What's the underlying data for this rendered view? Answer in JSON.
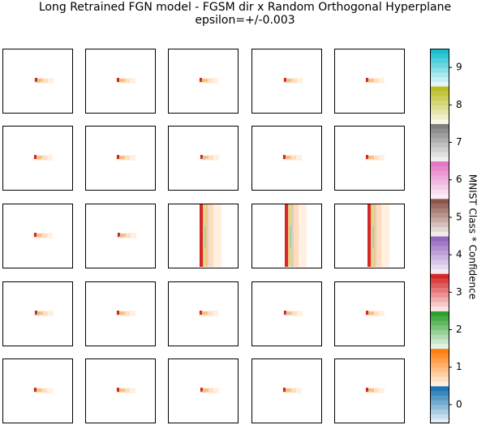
{
  "chart_data": {
    "type": "heatmap",
    "title_line1": "Long Retrained FGN model - FGSM dir x Random Orthogonal Hyperplane",
    "title_line2": "epsilon=+/-0.003",
    "rows": 5,
    "cols": 5,
    "panels": [
      [
        "blob",
        "blob",
        "blob",
        "blob",
        "blob"
      ],
      [
        "blob",
        "blob",
        "blob",
        "blob",
        "blob"
      ],
      [
        "blob",
        "blob",
        "stripe",
        "stripe",
        "stripe"
      ],
      [
        "blob",
        "blob",
        "blob",
        "blob",
        "blob"
      ],
      [
        "blob",
        "blob",
        "blob",
        "blob",
        "blob"
      ]
    ],
    "colorbar": {
      "label": "MNIST Class * Confidence",
      "range": [
        -0.5,
        9.5
      ],
      "ticks": [
        0,
        1,
        2,
        3,
        4,
        5,
        6,
        7,
        8,
        9
      ],
      "tick_labels": [
        "0",
        "1",
        "2",
        "3",
        "4",
        "5",
        "6",
        "7",
        "8",
        "9"
      ],
      "class_colors": [
        "#1f77b4",
        "#ff7f0e",
        "#2ca02c",
        "#d62728",
        "#9467bd",
        "#8c564b",
        "#e377c2",
        "#7f7f7f",
        "#bcbd22",
        "#17becf"
      ]
    },
    "axes_ticks_visible": false
  }
}
